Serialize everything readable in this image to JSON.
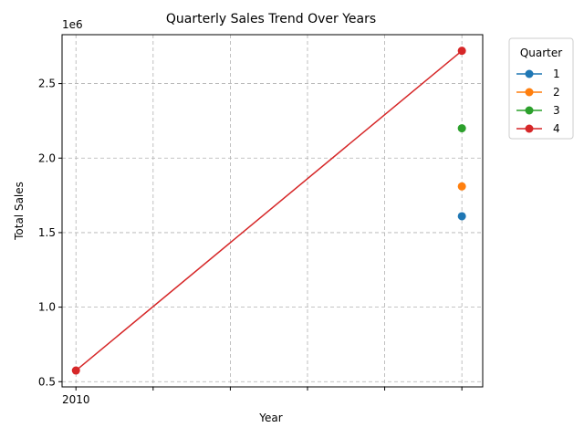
{
  "chart_data": {
    "type": "line",
    "title": "Quarterly Sales Trend Over Years",
    "xlabel": "Year",
    "ylabel": "Total Sales",
    "y_offset_label": "1e6",
    "x_tick_labels": [
      "2010",
      "",
      "",
      "",
      "",
      ""
    ],
    "x_tick_values": [
      2010,
      2011,
      2012,
      2013,
      2014,
      2015
    ],
    "xlim": [
      2009.82,
      2015.27
    ],
    "y_tick_labels": [
      "0.5",
      "1.0",
      "1.5",
      "2.0",
      "2.5"
    ],
    "y_tick_values": [
      500000,
      1000000,
      1500000,
      2000000,
      2500000
    ],
    "ylim": [
      465000,
      2828000
    ],
    "grid": true,
    "legend": {
      "title": "Quarter",
      "placement": "outside-top-right"
    },
    "series": [
      {
        "name": "1",
        "color": "#1f77b4",
        "points": [
          {
            "x": 2015,
            "y": 1610000
          }
        ]
      },
      {
        "name": "2",
        "color": "#ff7f0e",
        "points": [
          {
            "x": 2015,
            "y": 1810000
          }
        ]
      },
      {
        "name": "3",
        "color": "#2ca02c",
        "points": [
          {
            "x": 2015,
            "y": 2200000
          }
        ]
      },
      {
        "name": "4",
        "color": "#d62728",
        "points": [
          {
            "x": 2010,
            "y": 575000
          },
          {
            "x": 2015,
            "y": 2720000
          }
        ]
      }
    ]
  }
}
